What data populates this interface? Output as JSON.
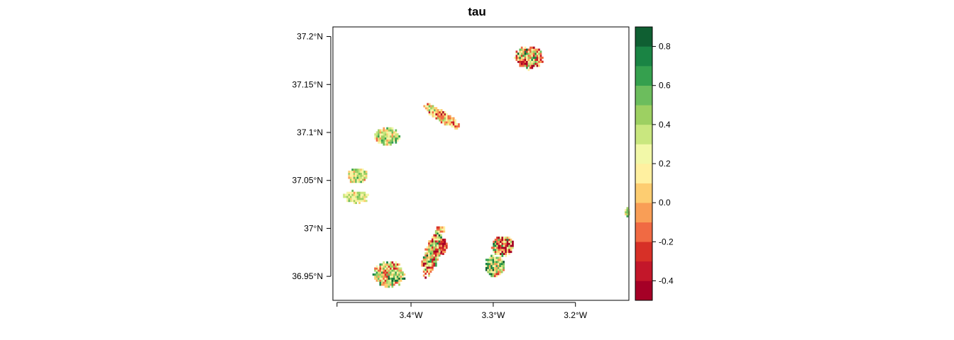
{
  "chart_data": {
    "type": "heatmap",
    "title": "tau",
    "xlabel": "",
    "ylabel": "",
    "xlim": [
      -3.495,
      -3.135
    ],
    "ylim": [
      36.925,
      37.21
    ],
    "x_ticks": [
      {
        "value": -3.4,
        "label": "3.4°W"
      },
      {
        "value": -3.3,
        "label": "3.3°W"
      },
      {
        "value": -3.2,
        "label": "3.2°W"
      }
    ],
    "y_ticks": [
      {
        "value": 37.2,
        "label": "37.2°N"
      },
      {
        "value": 37.15,
        "label": "37.15°N"
      },
      {
        "value": 37.1,
        "label": "37.1°N"
      },
      {
        "value": 37.05,
        "label": "37.05°N"
      },
      {
        "value": 37.0,
        "label": "37°N"
      },
      {
        "value": 36.95,
        "label": "36.95°N"
      }
    ],
    "legend": {
      "position": "right",
      "range": [
        -0.5,
        0.9
      ],
      "breaks": [
        -0.5,
        -0.4,
        -0.3,
        -0.2,
        -0.1,
        0.0,
        0.1,
        0.2,
        0.3,
        0.4,
        0.5,
        0.6,
        0.7,
        0.8,
        0.9
      ],
      "colors": [
        "#a50026",
        "#c3172a",
        "#d73027",
        "#f06a43",
        "#f99e56",
        "#fdcd71",
        "#fff0a0",
        "#f2f8a8",
        "#c9e77f",
        "#9dd062",
        "#6cbd5d",
        "#35a04e",
        "#1a8444",
        "#0f5f32"
      ],
      "tick_values": [
        -0.4,
        -0.2,
        0.0,
        0.2,
        0.4,
        0.6,
        0.8
      ],
      "tick_labels": [
        "-0.4",
        "-0.2",
        "0.0",
        "0.2",
        "0.4",
        "0.6",
        "0.8"
      ]
    },
    "patches": [
      {
        "lon": -3.258,
        "lat": 37.179,
        "rx": 0.017,
        "ry": 0.0115,
        "mean": 0.05,
        "spread": 0.6,
        "seed": 11
      },
      {
        "lon": -3.364,
        "lat": 37.118,
        "rx": 0.024,
        "ry": 0.006,
        "angle": -28,
        "mean": 0.05,
        "spread": 0.35,
        "seed": 22
      },
      {
        "lon": -3.43,
        "lat": 37.097,
        "rx": 0.015,
        "ry": 0.009,
        "mean": 0.25,
        "spread": 0.35,
        "seed": 33
      },
      {
        "lon": -3.466,
        "lat": 37.056,
        "rx": 0.012,
        "ry": 0.008,
        "mean": 0.3,
        "spread": 0.3,
        "seed": 44
      },
      {
        "lon": -3.468,
        "lat": 37.034,
        "rx": 0.015,
        "ry": 0.0065,
        "mean": 0.28,
        "spread": 0.25,
        "seed": 55
      },
      {
        "lon": -3.138,
        "lat": 37.018,
        "rx": 0.003,
        "ry": 0.005,
        "mean": 0.3,
        "spread": 0.3,
        "seed": 66
      },
      {
        "lon": -3.428,
        "lat": 36.953,
        "rx": 0.019,
        "ry": 0.013,
        "mean": 0.3,
        "spread": 0.45,
        "seed": 77
      },
      {
        "lon": -3.375,
        "lat": 36.975,
        "rx": 0.009,
        "ry": 0.025,
        "angle": -20,
        "mean": 0.1,
        "spread": 0.55,
        "seed": 88
      },
      {
        "lon": -3.362,
        "lat": 36.983,
        "rx": 0.005,
        "ry": 0.008,
        "mean": -0.3,
        "spread": 0.25,
        "seed": 89
      },
      {
        "lon": -3.365,
        "lat": 37.0,
        "rx": 0.006,
        "ry": 0.004,
        "mean": 0.15,
        "spread": 0.3,
        "seed": 90
      },
      {
        "lon": -3.299,
        "lat": 36.962,
        "rx": 0.011,
        "ry": 0.011,
        "mean": 0.35,
        "spread": 0.45,
        "seed": 99
      },
      {
        "lon": -3.29,
        "lat": 36.983,
        "rx": 0.013,
        "ry": 0.011,
        "mean": 0.0,
        "spread": 0.6,
        "seed": 100
      }
    ]
  }
}
